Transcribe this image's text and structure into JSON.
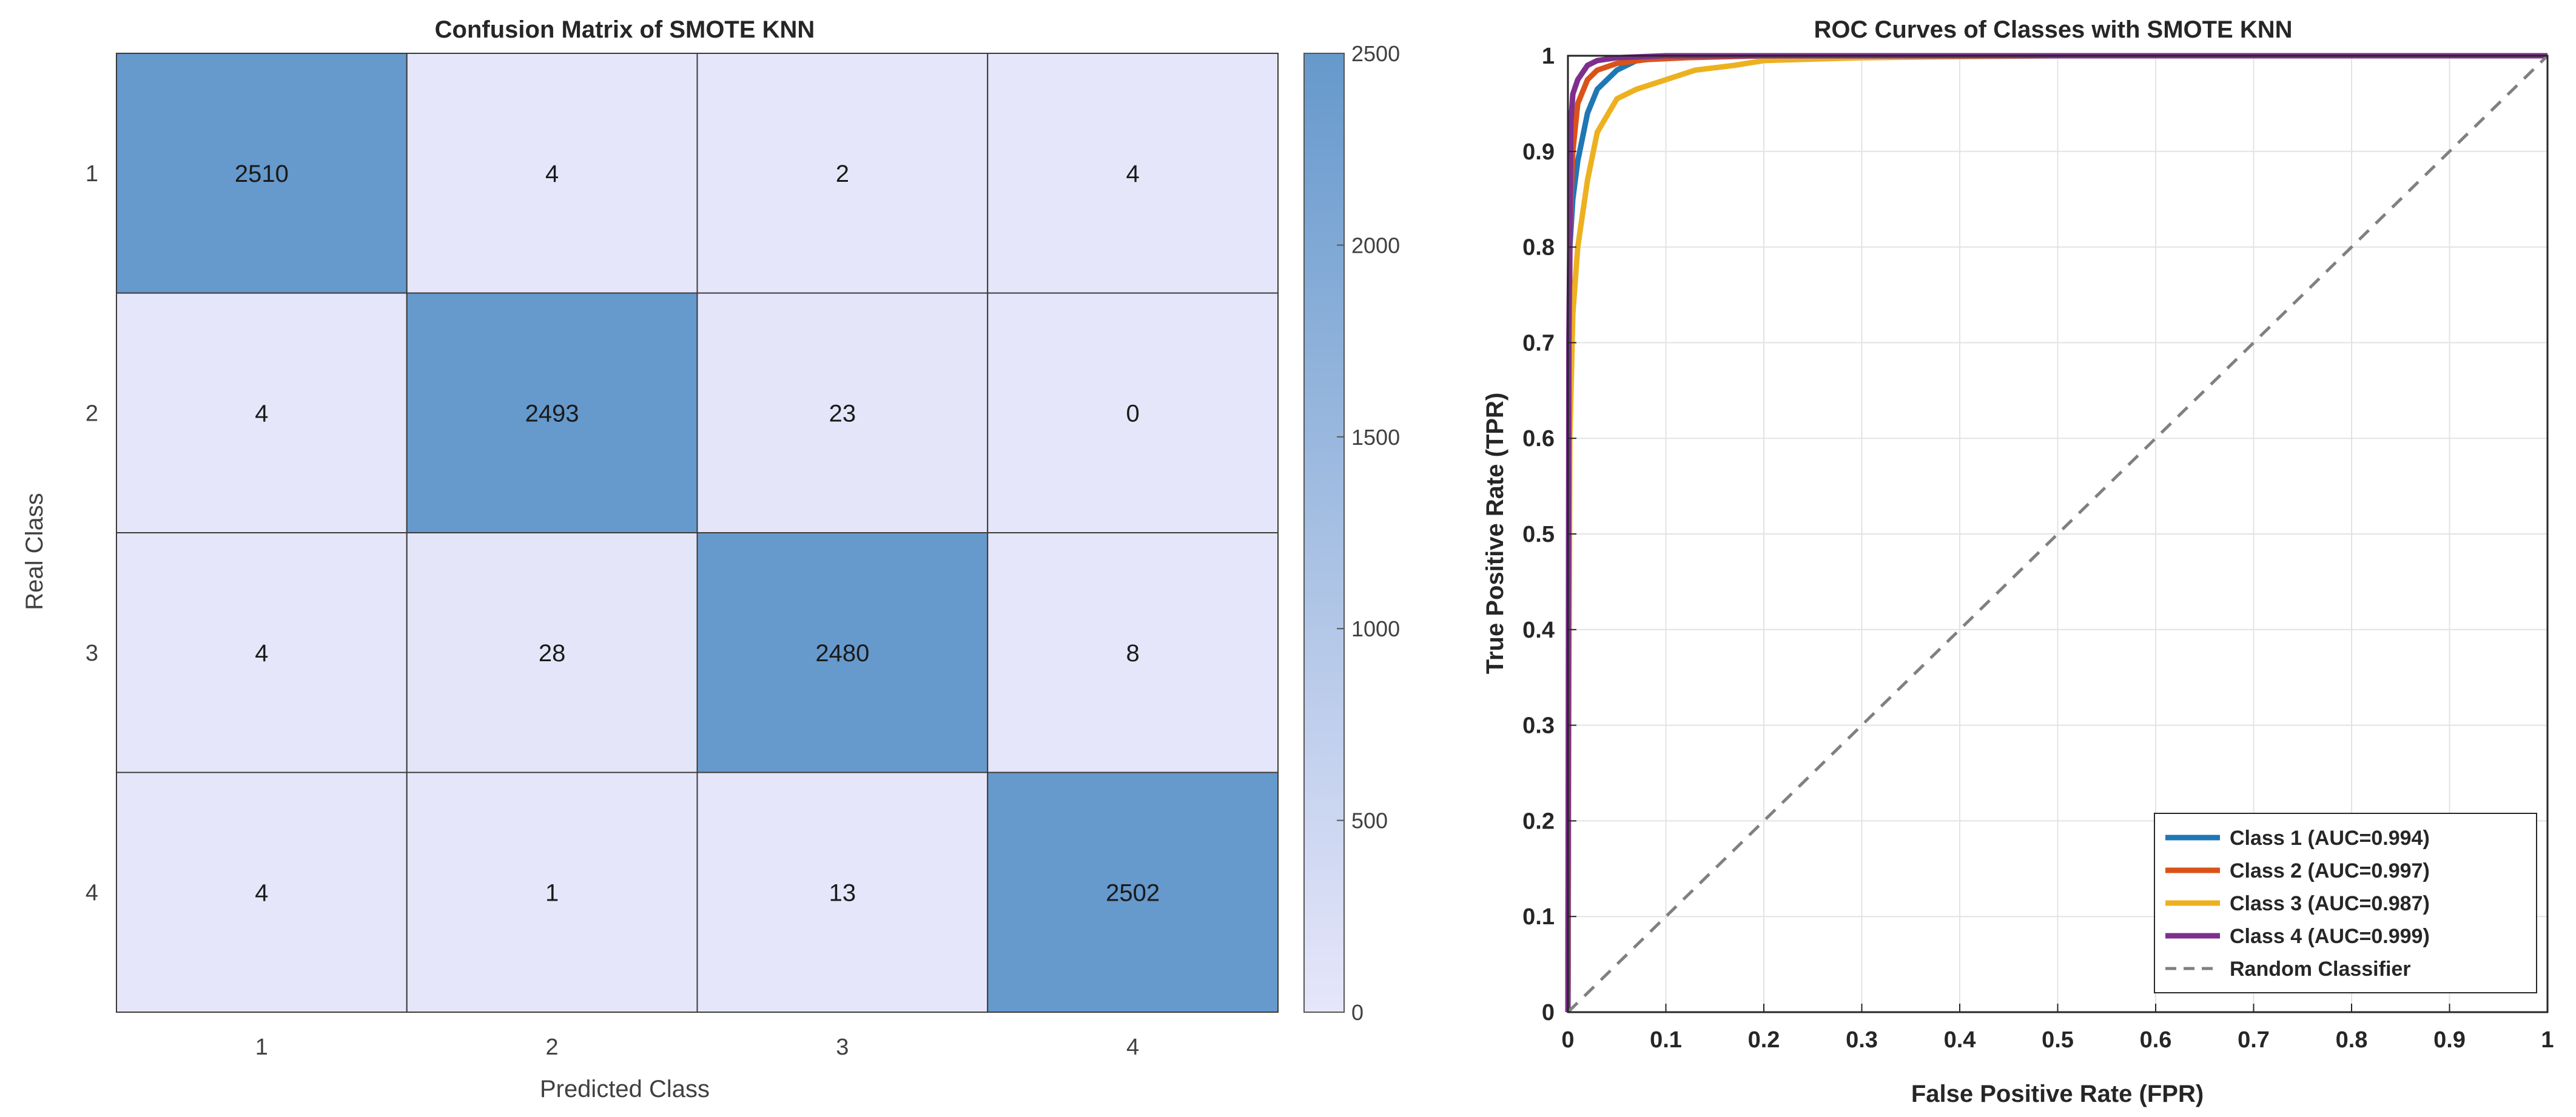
{
  "chart_data": [
    {
      "type": "heatmap",
      "title": "Confusion Matrix of SMOTE KNN",
      "xlabel": "Predicted Class",
      "ylabel": "Real Class",
      "x_categories": [
        "1",
        "2",
        "3",
        "4"
      ],
      "y_categories": [
        "1",
        "2",
        "3",
        "4"
      ],
      "matrix": [
        [
          2510,
          4,
          2,
          4
        ],
        [
          4,
          2493,
          23,
          0
        ],
        [
          4,
          28,
          2480,
          8
        ],
        [
          4,
          1,
          13,
          2502
        ]
      ],
      "colorbar": {
        "min": 0,
        "max": 2500,
        "ticks": [
          0,
          500,
          1000,
          1500,
          2000,
          2500
        ],
        "tick_labels": [
          "0",
          "500",
          "1000",
          "1500",
          "2000",
          "2500"
        ],
        "low_color": "#e6e6fa",
        "high_color": "#6699cc"
      }
    },
    {
      "type": "line",
      "title": "ROC Curves of Classes with SMOTE KNN",
      "xlabel": "False Positive Rate (FPR)",
      "ylabel": "True Positive Rate (TPR)",
      "xlim": [
        0,
        1
      ],
      "ylim": [
        0,
        1
      ],
      "xticks": [
        0,
        0.1,
        0.2,
        0.3,
        0.4,
        0.5,
        0.6,
        0.7,
        0.8,
        0.9,
        1
      ],
      "xtick_labels": [
        "0",
        "0.1",
        "0.2",
        "0.3",
        "0.4",
        "0.5",
        "0.6",
        "0.7",
        "0.8",
        "0.9",
        "1"
      ],
      "yticks": [
        0,
        0.1,
        0.2,
        0.3,
        0.4,
        0.5,
        0.6,
        0.7,
        0.8,
        0.9,
        1
      ],
      "ytick_labels": [
        "0",
        "0.1",
        "0.2",
        "0.3",
        "0.4",
        "0.5",
        "0.6",
        "0.7",
        "0.8",
        "0.9",
        "1"
      ],
      "grid": true,
      "legend_position": "bottom-right",
      "series": [
        {
          "name": "Class 1 (AUC=0.994)",
          "color": "#1f77b4",
          "dash": false,
          "x": [
            0,
            0.002,
            0.005,
            0.01,
            0.02,
            0.03,
            0.05,
            0.07,
            0.1,
            0.2,
            0.5,
            1
          ],
          "y": [
            0,
            0.8,
            0.85,
            0.89,
            0.94,
            0.965,
            0.985,
            0.995,
            0.998,
            1,
            1,
            1
          ]
        },
        {
          "name": "Class 2 (AUC=0.997)",
          "color": "#d95319",
          "dash": false,
          "x": [
            0,
            0.002,
            0.005,
            0.01,
            0.02,
            0.03,
            0.05,
            0.08,
            0.12,
            0.2,
            0.5,
            1
          ],
          "y": [
            0,
            0.82,
            0.9,
            0.95,
            0.975,
            0.985,
            0.992,
            0.996,
            0.998,
            1,
            1,
            1
          ]
        },
        {
          "name": "Class 3 (AUC=0.987)",
          "color": "#edb120",
          "dash": false,
          "x": [
            0,
            0.002,
            0.005,
            0.01,
            0.02,
            0.03,
            0.05,
            0.07,
            0.1,
            0.13,
            0.17,
            0.2,
            0.3,
            0.5,
            1
          ],
          "y": [
            0,
            0.6,
            0.73,
            0.8,
            0.87,
            0.92,
            0.955,
            0.965,
            0.975,
            0.985,
            0.99,
            0.995,
            0.998,
            1,
            1
          ]
        },
        {
          "name": "Class 4 (AUC=0.999)",
          "color": "#7e2f8e",
          "dash": false,
          "x": [
            0,
            0.001,
            0.003,
            0.005,
            0.01,
            0.02,
            0.03,
            0.05,
            0.1,
            0.5,
            1
          ],
          "y": [
            0,
            0.7,
            0.93,
            0.96,
            0.975,
            0.99,
            0.995,
            0.998,
            1,
            1,
            1
          ]
        },
        {
          "name": "Random Classifier",
          "color": "#808080",
          "dash": true,
          "x": [
            0,
            1
          ],
          "y": [
            0,
            1
          ]
        }
      ]
    }
  ]
}
